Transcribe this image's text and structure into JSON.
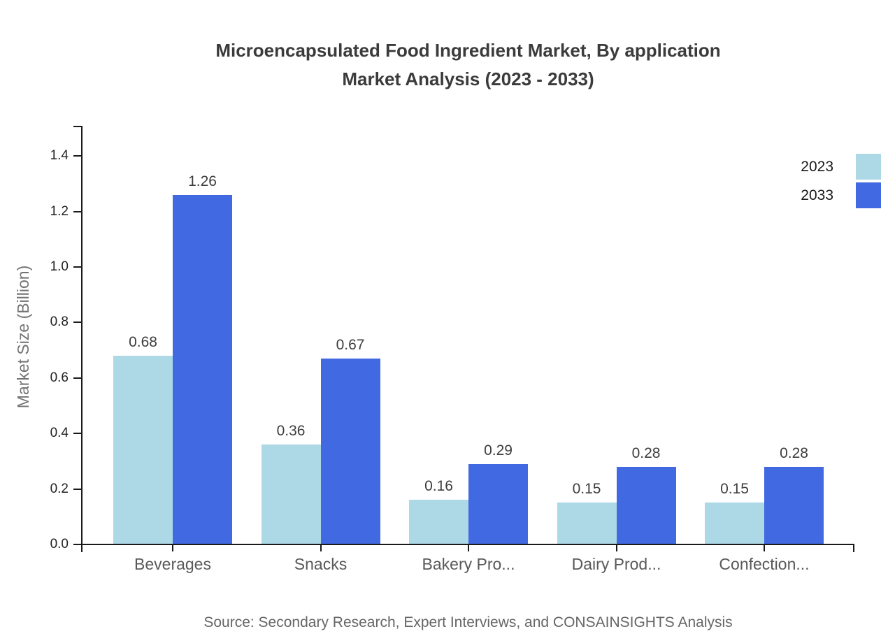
{
  "title": {
    "line1": "Microencapsulated Food Ingredient Market, By application",
    "line2": "Market Analysis (2023 - 2033)"
  },
  "source_note": "Source: Secondary Research, Expert Interviews, and CONSAINSIGHTS Analysis",
  "chart_data": {
    "type": "bar",
    "title": "Microencapsulated Food Ingredient Market, By application Market Analysis (2023 - 2033)",
    "xlabel": "",
    "ylabel": "Market Size (Billion)",
    "categories": [
      "Beverages",
      "Snacks",
      "Bakery Pro...",
      "Dairy Prod...",
      "Confection..."
    ],
    "series": [
      {
        "name": "2023",
        "color": "#ADD8E6",
        "values": [
          0.68,
          0.36,
          0.16,
          0.15,
          0.15
        ],
        "labels": [
          "0.68",
          "0.36",
          "0.16",
          "0.15",
          "0.15"
        ]
      },
      {
        "name": "2033",
        "color": "#4169E1",
        "values": [
          1.26,
          0.67,
          0.29,
          0.28,
          0.28
        ],
        "labels": [
          "1.26",
          "0.67",
          "0.29",
          "0.28",
          "0.28"
        ]
      }
    ],
    "ylim": [
      0,
      1.5
    ],
    "yticks": {
      "values": [
        0.0,
        0.2,
        0.4,
        0.6,
        0.8,
        1.0,
        1.2,
        1.4
      ],
      "labels": [
        "0.0",
        "0.2",
        "0.4",
        "0.6",
        "0.8",
        "1.0",
        "1.2",
        "1.4"
      ]
    },
    "grid": false,
    "legend_position": "top-right",
    "axis_color": "#1a1a1a"
  }
}
